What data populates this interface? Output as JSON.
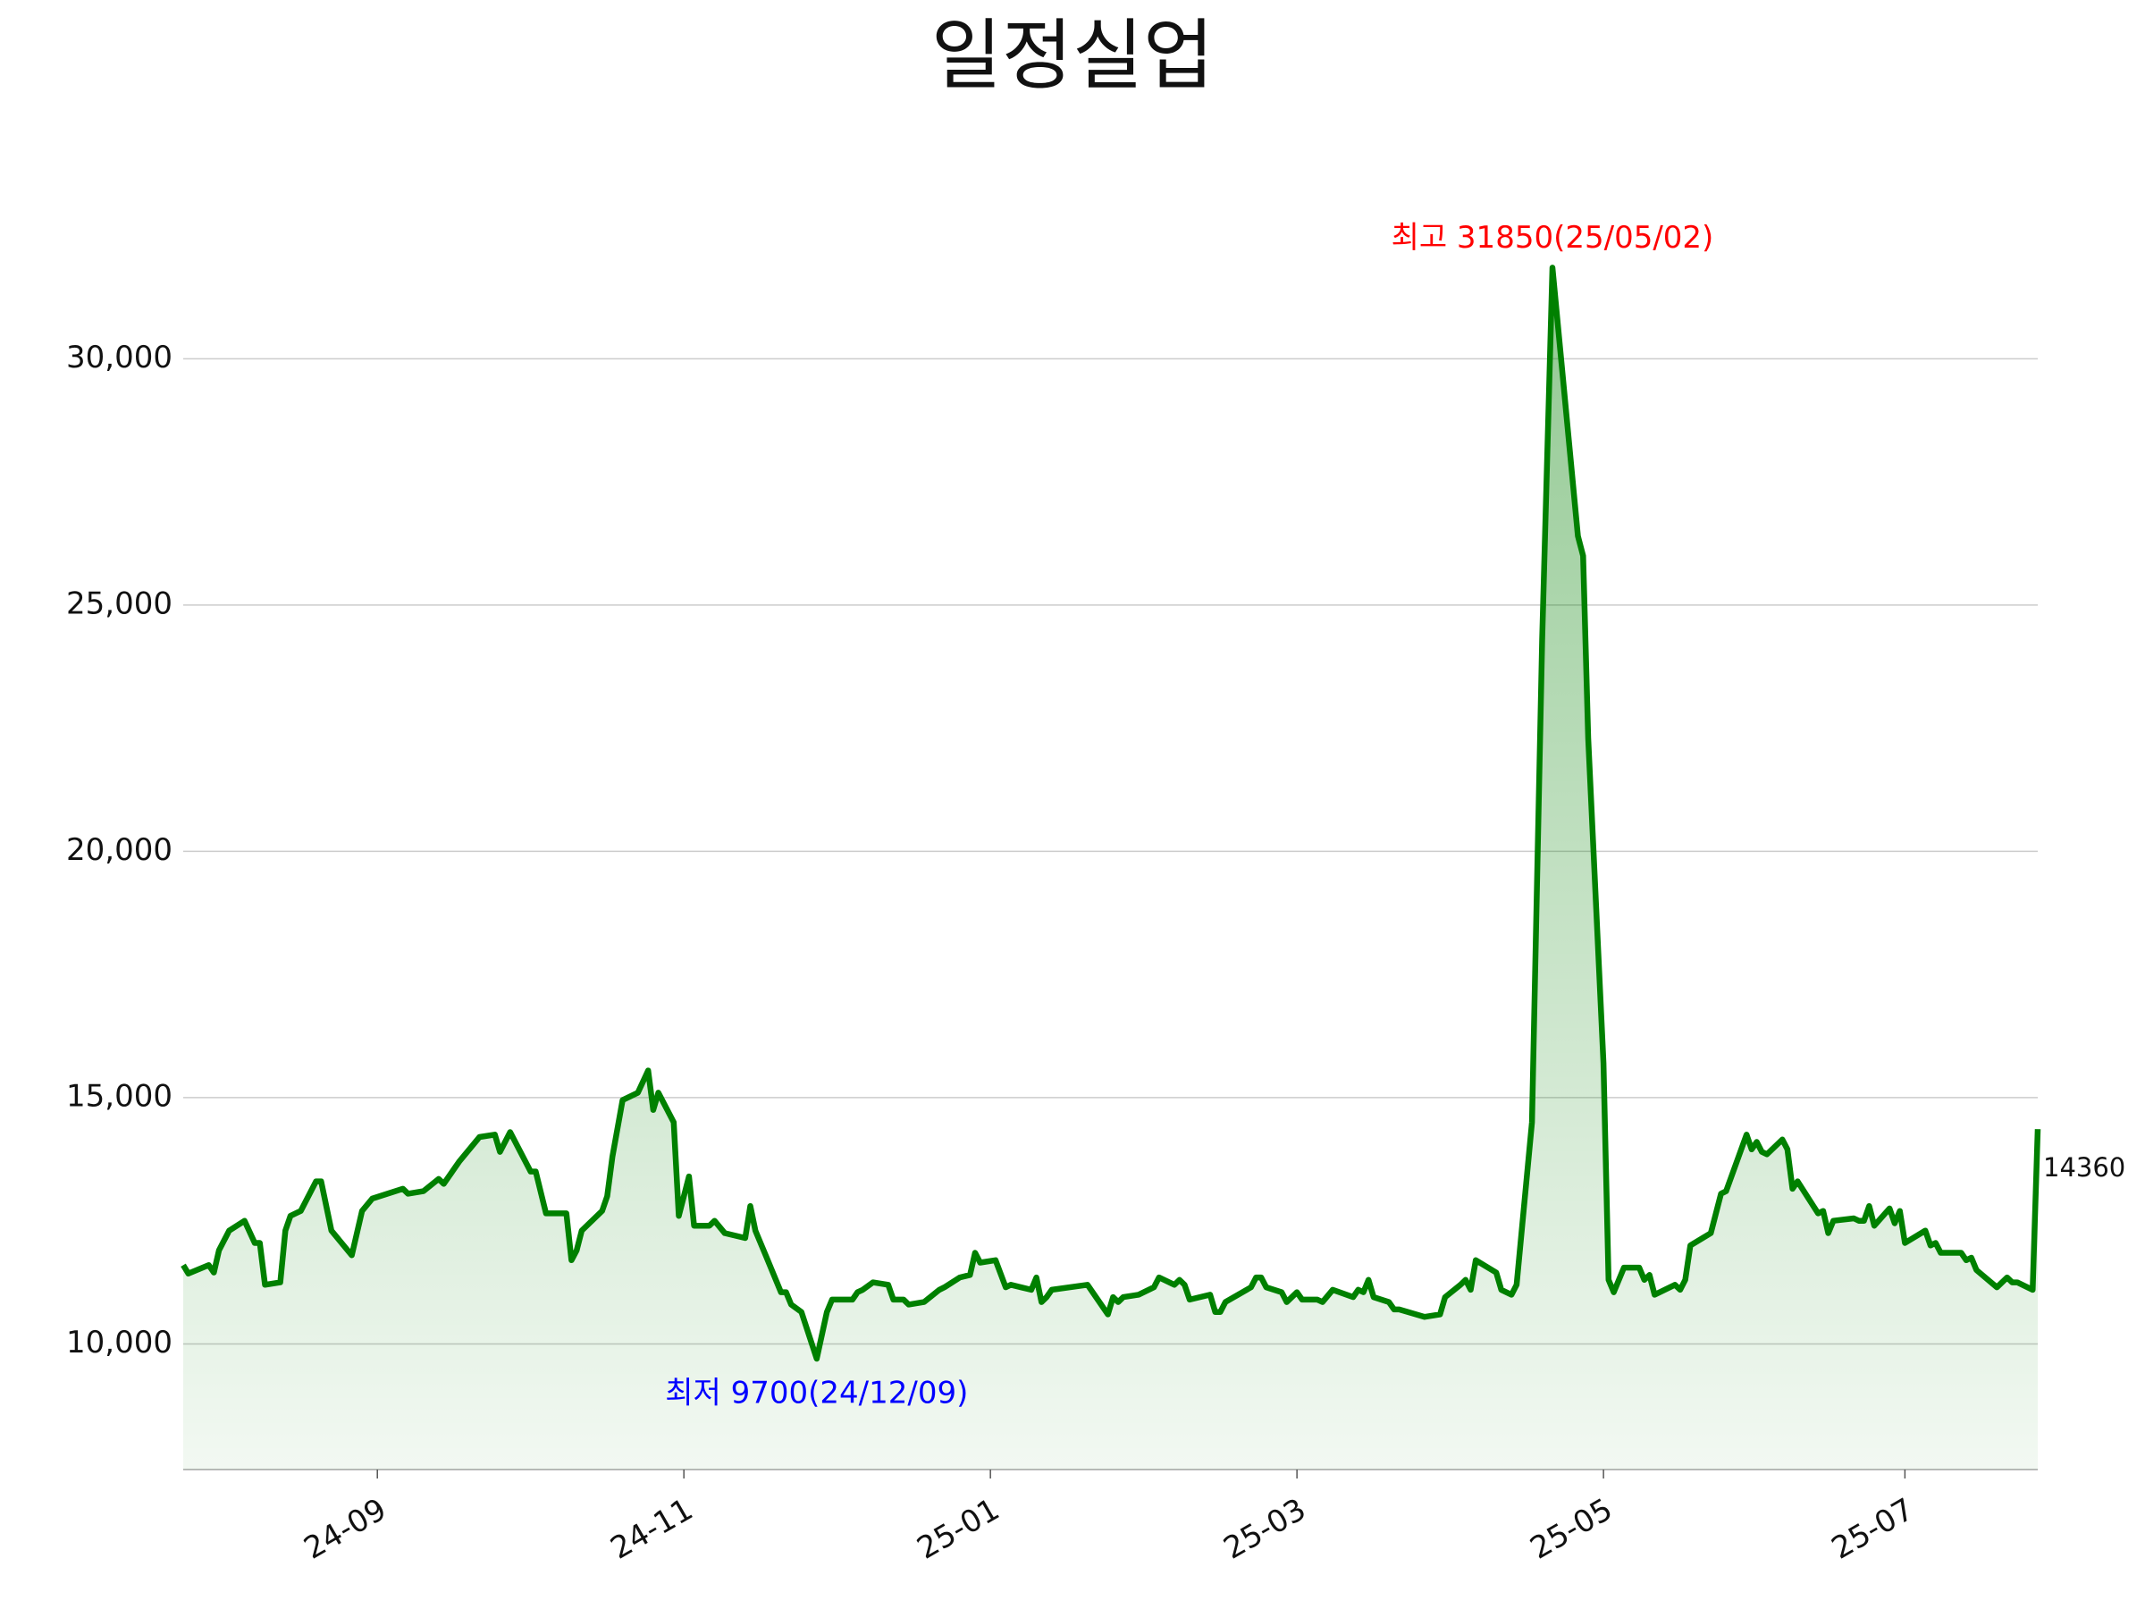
{
  "chart_data": {
    "type": "line",
    "title": "일정실업",
    "color": "#008000",
    "grid": true,
    "x": [
      "2024-08-07",
      "2024-08-08",
      "2024-08-12",
      "2024-08-13",
      "2024-08-14",
      "2024-08-16",
      "2024-08-19",
      "2024-08-21",
      "2024-08-22",
      "2024-08-23",
      "2024-08-26",
      "2024-08-27",
      "2024-08-28",
      "2024-08-30",
      "2024-09-02",
      "2024-09-03",
      "2024-09-05",
      "2024-09-09",
      "2024-09-11",
      "2024-09-13",
      "2024-09-19",
      "2024-09-20",
      "2024-09-23",
      "2024-09-26",
      "2024-09-27",
      "2024-09-30",
      "2024-10-04",
      "2024-10-07",
      "2024-10-08",
      "2024-10-10",
      "2024-10-14",
      "2024-10-15",
      "2024-10-17",
      "2024-10-21",
      "2024-10-22",
      "2024-10-23",
      "2024-10-24",
      "2024-10-28",
      "2024-10-29",
      "2024-10-30",
      "2024-11-01",
      "2024-11-04",
      "2024-11-06",
      "2024-11-07",
      "2024-11-08",
      "2024-11-11",
      "2024-11-12",
      "2024-11-14",
      "2024-11-15",
      "2024-11-18",
      "2024-11-19",
      "2024-11-21",
      "2024-11-25",
      "2024-11-26",
      "2024-11-27",
      "2024-11-29",
      "2024-12-02",
      "2024-12-03",
      "2024-12-04",
      "2024-12-06",
      "2024-12-09",
      "2024-12-11",
      "2024-12-12",
      "2024-12-16",
      "2024-12-17",
      "2024-12-18",
      "2024-12-20",
      "2024-12-23",
      "2024-12-24",
      "2024-12-26",
      "2024-12-27",
      "2024-12-30",
      "2025-01-02",
      "2025-01-03",
      "2025-01-06",
      "2025-01-08",
      "2025-01-09",
      "2025-01-10",
      "2025-01-13",
      "2025-01-15",
      "2025-01-16",
      "2025-01-20",
      "2025-01-21",
      "2025-01-22",
      "2025-01-23",
      "2025-01-24",
      "2025-01-31",
      "2025-02-04",
      "2025-02-05",
      "2025-02-06",
      "2025-02-07",
      "2025-02-10",
      "2025-02-13",
      "2025-02-14",
      "2025-02-17",
      "2025-02-18",
      "2025-02-19",
      "2025-02-20",
      "2025-02-24",
      "2025-02-25",
      "2025-02-26",
      "2025-02-27",
      "2025-03-04",
      "2025-03-05",
      "2025-03-06",
      "2025-03-07",
      "2025-03-10",
      "2025-03-11",
      "2025-03-13",
      "2025-03-14",
      "2025-03-17",
      "2025-03-18",
      "2025-03-20",
      "2025-03-24",
      "2025-03-25",
      "2025-03-26",
      "2025-03-27",
      "2025-03-28",
      "2025-03-31",
      "2025-04-01",
      "2025-04-02",
      "2025-04-07",
      "2025-04-10",
      "2025-04-11",
      "2025-04-14",
      "2025-04-15",
      "2025-04-16",
      "2025-04-17",
      "2025-04-21",
      "2025-04-22",
      "2025-04-24",
      "2025-04-25",
      "2025-04-28",
      "2025-04-30",
      "2025-05-02",
      "2025-05-07",
      "2025-05-08",
      "2025-05-09",
      "2025-05-12",
      "2025-05-13",
      "2025-05-14",
      "2025-05-16",
      "2025-05-19",
      "2025-05-20",
      "2025-05-21",
      "2025-05-22",
      "2025-05-26",
      "2025-05-27",
      "2025-05-28",
      "2025-05-29",
      "2025-06-02",
      "2025-06-04",
      "2025-06-05",
      "2025-06-09",
      "2025-06-10",
      "2025-06-11",
      "2025-06-12",
      "2025-06-13",
      "2025-06-16",
      "2025-06-17",
      "2025-06-18",
      "2025-06-19",
      "2025-06-23",
      "2025-06-24",
      "2025-06-25",
      "2025-06-26",
      "2025-06-30",
      "2025-07-01",
      "2025-07-02",
      "2025-07-03",
      "2025-07-04",
      "2025-07-07",
      "2025-07-08",
      "2025-07-09",
      "2025-07-10",
      "2025-07-14",
      "2025-07-15",
      "2025-07-16",
      "2025-07-17",
      "2025-07-21",
      "2025-07-22",
      "2025-07-23",
      "2025-07-24",
      "2025-07-28",
      "2025-07-30",
      "2025-07-31",
      "2025-08-01",
      "2025-08-04",
      "2025-08-05"
    ],
    "values": [
      11600,
      11430,
      11600,
      11450,
      11900,
      12300,
      12500,
      12050,
      12050,
      11200,
      11250,
      12300,
      12600,
      12700,
      13300,
      13300,
      12300,
      11800,
      12700,
      12950,
      13150,
      13050,
      13100,
      13350,
      13250,
      13700,
      14200,
      14250,
      13900,
      14300,
      13500,
      13500,
      12650,
      12650,
      11700,
      11900,
      12300,
      12700,
      13000,
      13800,
      14950,
      15100,
      15550,
      14750,
      15100,
      14500,
      12600,
      13400,
      12400,
      12400,
      12500,
      12250,
      12150,
      12800,
      12300,
      11800,
      11050,
      11050,
      10800,
      10650,
      9700,
      10650,
      10900,
      10900,
      11050,
      11100,
      11250,
      11200,
      10900,
      10900,
      10800,
      10850,
      11100,
      11150,
      11350,
      11400,
      11850,
      11650,
      11700,
      11150,
      11200,
      11100,
      11350,
      10850,
      10950,
      11100,
      11200,
      10600,
      10950,
      10850,
      10950,
      11000,
      11150,
      11350,
      11200,
      11300,
      11200,
      10900,
      11000,
      10650,
      10650,
      10850,
      11150,
      11350,
      11350,
      11150,
      11050,
      10850,
      11050,
      10900,
      10900,
      10850,
      11100,
      10950,
      11100,
      11050,
      11300,
      10950,
      10850,
      10700,
      10700,
      10550,
      10600,
      10950,
      11200,
      11300,
      11100,
      11700,
      11450,
      11100,
      11000,
      11200,
      14500,
      24300,
      31850,
      26400,
      26000,
      22300,
      15700,
      11300,
      11050,
      11550,
      11550,
      11300,
      11400,
      11000,
      11200,
      11100,
      11300,
      12000,
      12250,
      13050,
      13100,
      14250,
      13950,
      14100,
      13900,
      13850,
      14150,
      13950,
      13150,
      13300,
      12650,
      12700,
      12250,
      12500,
      12550,
      12500,
      12500,
      12800,
      12400,
      12750,
      12450,
      12700,
      12050,
      12300,
      12000,
      12050,
      11850,
      11850,
      11700,
      11750,
      11500,
      11150,
      11350,
      11250,
      11250,
      11100,
      14360
    ],
    "xlim": [
      "2024-08-07",
      "2025-08-05"
    ],
    "xticks": [
      {
        "value": "2024-09-14",
        "label": "24-09"
      },
      {
        "value": "2024-11-13",
        "label": "24-11"
      },
      {
        "value": "2025-01-12",
        "label": "25-01"
      },
      {
        "value": "2025-03-13",
        "label": "25-03"
      },
      {
        "value": "2025-05-12",
        "label": "25-05"
      },
      {
        "value": "2025-07-10",
        "label": "25-07"
      }
    ],
    "ylim": [
      7450,
      33000
    ],
    "yticks": [
      {
        "value": 10000,
        "label": "10,000"
      },
      {
        "value": 15000,
        "label": "15,000"
      },
      {
        "value": 20000,
        "label": "20,000"
      },
      {
        "value": 25000,
        "label": "25,000"
      },
      {
        "value": 30000,
        "label": "30,000"
      }
    ],
    "annotations": [
      {
        "text": "최고 31850(25/05/02)",
        "x": "2025-05-02",
        "y": 31850,
        "color": "#ff0000",
        "position": "above"
      },
      {
        "text": "최저 9700(24/12/09)",
        "x": "2024-12-09",
        "y": 9700,
        "color": "#0000ff",
        "position": "below"
      },
      {
        "text": "14360",
        "x": "2025-08-05",
        "y": 14360,
        "color": "#111111",
        "position": "right"
      }
    ]
  }
}
